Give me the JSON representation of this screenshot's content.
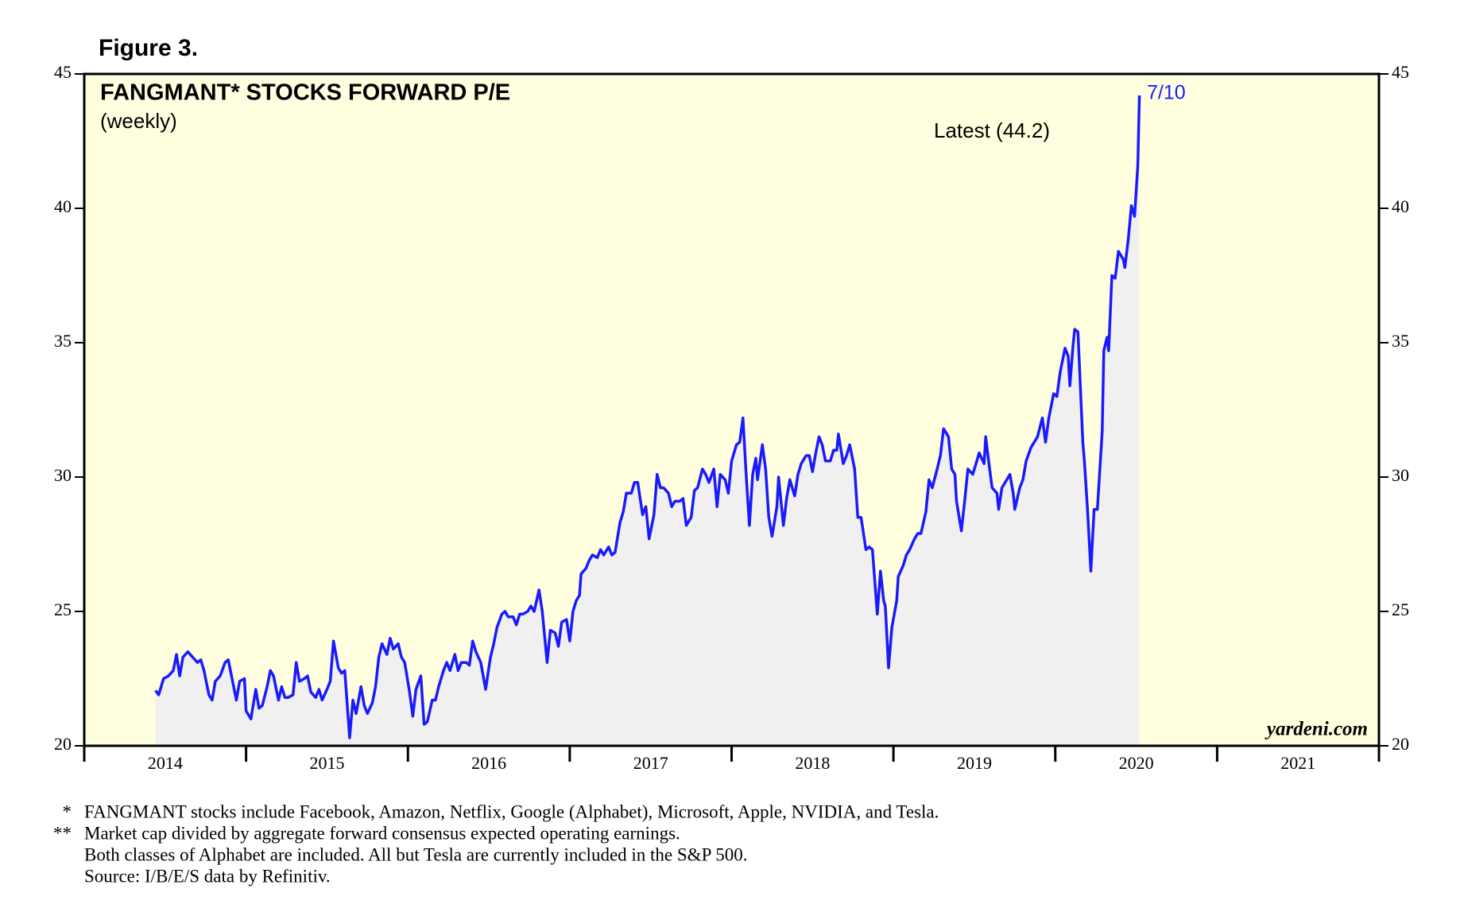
{
  "chart_data": {
    "type": "line",
    "figure_label": "Figure 3.",
    "title": "FANGMANT* STOCKS FORWARD P/E",
    "subtitle": "(weekly)",
    "annotations": {
      "latest": "Latest (44.2)",
      "date": "7/10",
      "source_brand": "yardeni.com"
    },
    "footnotes": [
      {
        "marker": "*",
        "text": "FANGMANT stocks include Facebook, Amazon, Netflix, Google (Alphabet), Microsoft, Apple, NVIDIA, and Tesla."
      },
      {
        "marker": "**",
        "text": "Market cap divided by aggregate forward consensus expected operating earnings."
      },
      {
        "text": "Both classes of Alphabet are included. All but Tesla are currently included in the S&P 500."
      },
      {
        "text": "Source: I/B/E/S data by Refinitiv."
      }
    ],
    "xlim": [
      2014,
      2022
    ],
    "xticks": [
      2014,
      2015,
      2016,
      2017,
      2018,
      2019,
      2020,
      2021
    ],
    "ylim": [
      20,
      45
    ],
    "yticks": [
      20,
      25,
      30,
      35,
      40,
      45
    ],
    "background": "#ffffe0",
    "area_color": "#f0f0f0",
    "series": [
      {
        "color": "#1a1aff",
        "x": [
          2014.44,
          2014.46,
          2014.49,
          2014.52,
          2014.55,
          2014.57,
          2014.59,
          2014.61,
          2014.64,
          2014.67,
          2014.7,
          2014.72,
          2014.74,
          2014.77,
          2014.79,
          2014.81,
          2014.84,
          2014.87,
          2014.89,
          2014.91,
          2014.94,
          2014.96,
          2014.99,
          2015.0,
          2015.03,
          2015.06,
          2015.08,
          2015.1,
          2015.13,
          2015.15,
          2015.17,
          2015.2,
          2015.22,
          2015.24,
          2015.26,
          2015.29,
          2015.31,
          2015.33,
          2015.36,
          2015.38,
          2015.4,
          2015.43,
          2015.45,
          2015.47,
          2015.5,
          2015.52,
          2015.54,
          2015.57,
          2015.59,
          2015.61,
          2015.64,
          2015.66,
          2015.68,
          2015.71,
          2015.73,
          2015.75,
          2015.78,
          2015.8,
          2015.82,
          2015.84,
          2015.87,
          2015.89,
          2015.91,
          2015.94,
          2015.96,
          2015.98,
          2016.01,
          2016.03,
          2016.05,
          2016.08,
          2016.1,
          2016.12,
          2016.15,
          2016.17,
          2016.19,
          2016.22,
          2016.24,
          2016.26,
          2016.29,
          2016.31,
          2016.33,
          2016.36,
          2016.38,
          2016.4,
          2016.42,
          2016.45,
          2016.48,
          2016.51,
          2016.53,
          2016.55,
          2016.58,
          2016.6,
          2016.62,
          2016.65,
          2016.67,
          2016.69,
          2016.71,
          2016.74,
          2016.76,
          2016.78,
          2016.81,
          2016.83,
          2016.86,
          2016.88,
          2016.91,
          2016.93,
          2016.95,
          2016.98,
          2017.0,
          2017.02,
          2017.04,
          2017.06,
          2017.07,
          2017.1,
          2017.12,
          2017.14,
          2017.17,
          2017.19,
          2017.21,
          2017.24,
          2017.26,
          2017.28,
          2017.31,
          2017.33,
          2017.35,
          2017.38,
          2017.4,
          2017.42,
          2017.45,
          2017.47,
          2017.49,
          2017.52,
          2017.54,
          2017.56,
          2017.58,
          2017.61,
          2017.63,
          2017.65,
          2017.68,
          2017.7,
          2017.72,
          2017.75,
          2017.77,
          2017.79,
          2017.82,
          2017.84,
          2017.86,
          2017.89,
          2017.91,
          2017.93,
          2017.96,
          2017.98,
          2018.0,
          2018.03,
          2018.05,
          2018.07,
          2018.09,
          2018.11,
          2018.13,
          2018.15,
          2018.16,
          2018.19,
          2018.21,
          2018.23,
          2018.25,
          2018.28,
          2018.29,
          2018.32,
          2018.34,
          2018.36,
          2018.39,
          2018.41,
          2018.43,
          2018.46,
          2018.48,
          2018.5,
          2018.52,
          2018.54,
          2018.56,
          2018.58,
          2018.61,
          2018.63,
          2018.65,
          2018.66,
          2018.69,
          2018.71,
          2018.73,
          2018.76,
          2018.78,
          2018.8,
          2018.83,
          2018.85,
          2018.87,
          2018.9,
          2018.92,
          2018.94,
          2018.95,
          2018.97,
          2018.99,
          2019.02,
          2019.03,
          2019.06,
          2019.08,
          2019.1,
          2019.13,
          2019.15,
          2019.17,
          2019.2,
          2019.22,
          2019.24,
          2019.27,
          2019.29,
          2019.31,
          2019.34,
          2019.36,
          2019.38,
          2019.39,
          2019.42,
          2019.44,
          2019.46,
          2019.49,
          2019.51,
          2019.53,
          2019.56,
          2019.57,
          2019.59,
          2019.61,
          2019.64,
          2019.65,
          2019.67,
          2019.7,
          2019.72,
          2019.74,
          2019.75,
          2019.78,
          2019.8,
          2019.82,
          2019.85,
          2019.87,
          2019.89,
          2019.92,
          2019.94,
          2019.96,
          2019.99,
          2020.01,
          2020.03,
          2020.06,
          2020.08,
          2020.09,
          2020.11,
          2020.12,
          2020.14,
          2020.17,
          2020.18,
          2020.2,
          2020.22,
          2020.24,
          2020.26,
          2020.29,
          2020.3,
          2020.32,
          2020.33,
          2020.35,
          2020.37,
          2020.39,
          2020.42,
          2020.43,
          2020.45,
          2020.47,
          2020.49,
          2020.51,
          2020.52
        ],
        "values": [
          22.06,
          21.9,
          22.5,
          22.6,
          22.8,
          23.4,
          22.6,
          23.3,
          23.5,
          23.3,
          23.1,
          23.2,
          22.8,
          21.9,
          21.7,
          22.4,
          22.6,
          23.1,
          23.2,
          22.6,
          21.7,
          22.4,
          22.5,
          21.3,
          21.0,
          22.1,
          21.4,
          21.5,
          22.2,
          22.8,
          22.6,
          21.7,
          22.2,
          21.8,
          21.8,
          21.9,
          23.1,
          22.4,
          22.5,
          22.6,
          22.0,
          21.8,
          22.1,
          21.7,
          22.1,
          22.4,
          23.9,
          22.9,
          22.7,
          22.8,
          20.3,
          21.7,
          21.2,
          22.2,
          21.5,
          21.2,
          21.6,
          22.2,
          23.3,
          23.8,
          23.4,
          24.0,
          23.6,
          23.8,
          23.3,
          23.1,
          22.0,
          21.1,
          22.1,
          22.6,
          20.8,
          20.9,
          21.7,
          21.7,
          22.2,
          22.8,
          23.1,
          22.8,
          23.4,
          22.8,
          23.1,
          23.1,
          23.0,
          23.9,
          23.5,
          23.1,
          22.1,
          23.3,
          23.8,
          24.4,
          24.9,
          25.0,
          24.8,
          24.8,
          24.5,
          24.9,
          24.9,
          25.0,
          25.2,
          25.0,
          25.8,
          25.0,
          23.1,
          24.3,
          24.2,
          23.7,
          24.6,
          24.7,
          23.9,
          25.0,
          25.4,
          25.6,
          26.4,
          26.6,
          26.9,
          27.1,
          27.0,
          27.3,
          27.1,
          27.4,
          27.1,
          27.2,
          28.3,
          28.7,
          29.4,
          29.4,
          29.8,
          29.8,
          28.6,
          28.9,
          27.7,
          28.6,
          30.1,
          29.6,
          29.6,
          29.4,
          28.9,
          29.1,
          29.1,
          29.2,
          28.2,
          28.5,
          29.5,
          29.6,
          30.3,
          30.1,
          29.8,
          30.3,
          28.9,
          30.1,
          29.9,
          29.4,
          30.6,
          31.2,
          31.3,
          32.2,
          30.1,
          28.2,
          30.1,
          30.7,
          29.9,
          31.2,
          30.3,
          28.5,
          27.8,
          28.9,
          30.0,
          28.2,
          29.2,
          29.9,
          29.3,
          30.1,
          30.5,
          30.8,
          30.8,
          30.2,
          30.9,
          31.5,
          31.2,
          30.6,
          30.6,
          31.0,
          31.0,
          31.6,
          30.5,
          30.8,
          31.2,
          30.3,
          28.5,
          28.5,
          27.3,
          27.4,
          27.3,
          24.9,
          26.5,
          25.4,
          25.2,
          22.9,
          24.4,
          25.4,
          26.3,
          26.7,
          27.1,
          27.3,
          27.7,
          27.9,
          27.9,
          28.7,
          29.9,
          29.6,
          30.3,
          30.8,
          31.8,
          31.5,
          30.3,
          30.1,
          29.1,
          28.0,
          29.1,
          30.3,
          30.1,
          30.5,
          30.9,
          30.5,
          31.5,
          30.5,
          29.6,
          29.4,
          28.8,
          29.6,
          29.9,
          30.1,
          29.4,
          28.8,
          29.6,
          29.9,
          30.6,
          31.1,
          31.3,
          31.5,
          32.2,
          31.3,
          32.2,
          33.1,
          33.0,
          33.9,
          34.8,
          34.5,
          33.4,
          34.9,
          35.5,
          35.4,
          31.3,
          30.6,
          28.7,
          26.5,
          28.8,
          28.8,
          31.7,
          34.7,
          35.2,
          34.7,
          37.5,
          37.4,
          38.4,
          38.1,
          37.8,
          38.8,
          40.1,
          39.7,
          41.6,
          44.2
        ]
      }
    ]
  }
}
